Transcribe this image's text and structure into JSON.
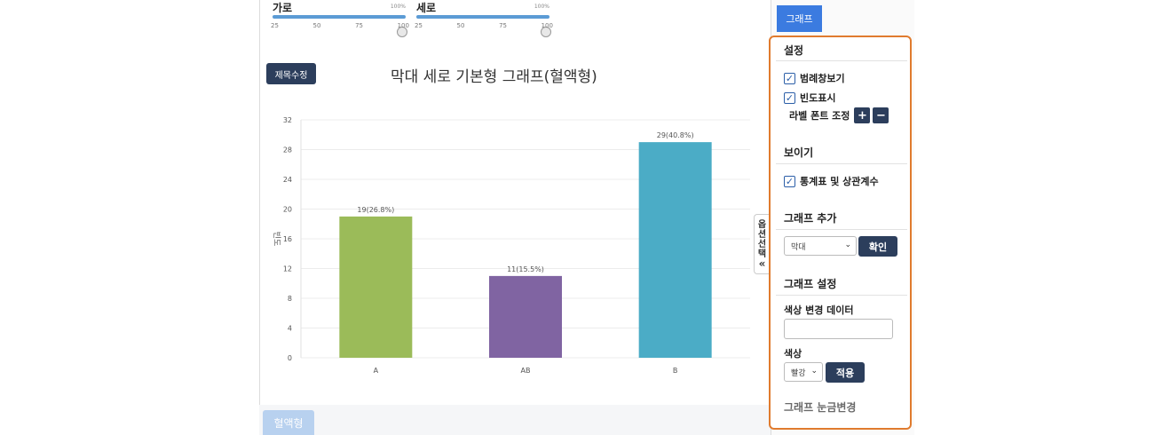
{
  "sliders": [
    {
      "label": "가로",
      "max_label": "100%",
      "ticks": [
        "25",
        "50",
        "75",
        "100"
      ],
      "value_percent": 100
    },
    {
      "label": "세로",
      "max_label": "100%",
      "ticks": [
        "25",
        "50",
        "75",
        "100"
      ],
      "value_percent": 100
    }
  ],
  "edit_title_label": "제목수정",
  "option_tab": {
    "chars": [
      "옵",
      "션",
      "선",
      "택"
    ],
    "arrow": "«"
  },
  "bottom_tab_label": "혈액형",
  "right_panel": {
    "graph_button": "그래프",
    "settings_title": "설정",
    "show_legend": "범례창보기",
    "show_frequency": "빈도표시",
    "label_font_adjust": "라벨 폰트 조정",
    "plus": "+",
    "minus": "−",
    "view_title": "보이기",
    "stats_table": "통계표 및 상관계수",
    "add_graph_title": "그래프 추가",
    "graph_type_select": "막대",
    "confirm_button": "확인",
    "graph_settings_title": "그래프 설정",
    "color_change_data": "색상 변경 데이터",
    "color_label": "색상",
    "color_select": "빨강",
    "apply_button": "적용",
    "tick_change_title": "그래프 눈금변경"
  },
  "chart_data": {
    "type": "bar",
    "title": "막대 세로 기본형 그래프(혈액형)",
    "ylabel": "빈도",
    "categories": [
      "A",
      "AB",
      "B"
    ],
    "values": [
      19,
      11,
      29
    ],
    "data_labels": [
      "19(26.8%)",
      "11(15.5%)",
      "29(40.8%)"
    ],
    "colors": [
      "#9bbb59",
      "#8064a2",
      "#4bacc6"
    ],
    "yticks": [
      "0",
      "4",
      "8",
      "12",
      "16",
      "20",
      "24",
      "28",
      "32"
    ],
    "ylim": [
      0,
      32
    ],
    "grid": true
  }
}
